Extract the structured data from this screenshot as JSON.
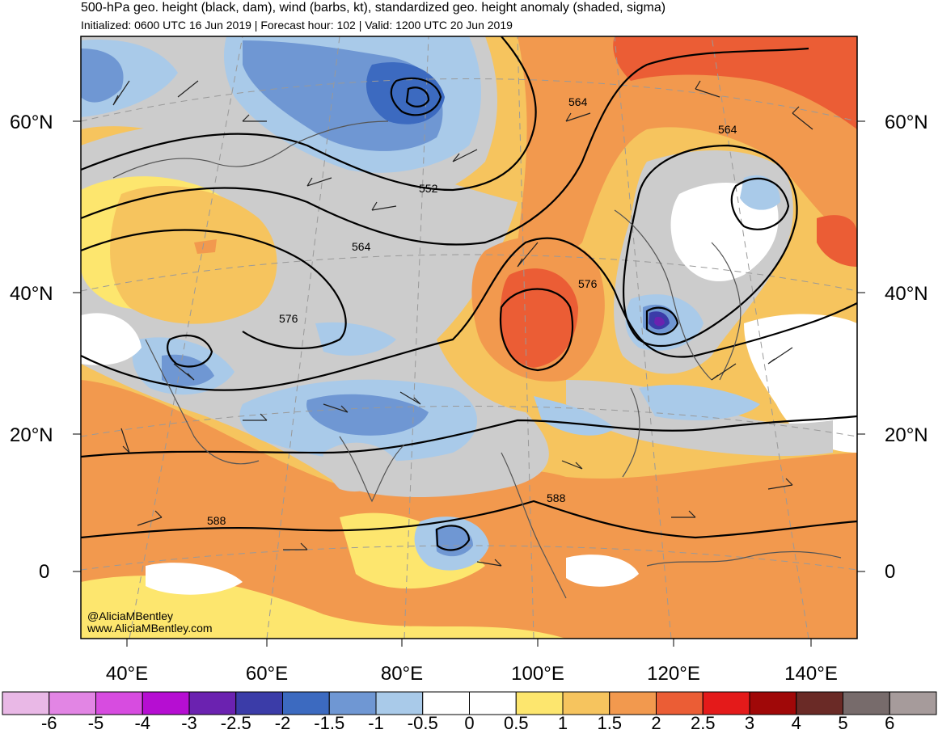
{
  "header": {
    "title": "500-hPa geo. height (black, dam), wind (barbs, kt), standardized geo. height anomaly (shaded, sigma)",
    "subtitle": "Initialized: 0600 UTC 16 Jun 2019 | Forecast hour: 102 | Valid: 1200 UTC 20 Jun 2019"
  },
  "map": {
    "lat_labels": [
      "60°N",
      "40°N",
      "20°N",
      "0"
    ],
    "lon_labels": [
      "40°E",
      "60°E",
      "80°E",
      "100°E",
      "120°E",
      "140°E"
    ],
    "contour_labels": [
      "552",
      "564",
      "564",
      "564",
      "576",
      "576",
      "588",
      "588"
    ],
    "credit_handle": "@AliciaMBentley",
    "credit_url": "www.AliciaMBentley.com"
  },
  "colorbar": {
    "labels": [
      "-6",
      "-5",
      "-4",
      "-3",
      "-2.5",
      "-2",
      "-1.5",
      "-1",
      "-0.5",
      "0",
      "0.5",
      "1",
      "1.5",
      "2",
      "2.5",
      "3",
      "4",
      "5",
      "6"
    ],
    "colors": [
      "#e9b8e6",
      "#e285e4",
      "#d74ce0",
      "#b60ed2",
      "#6b22b0",
      "#3b3ca8",
      "#3c6ac0",
      "#6f97d3",
      "#a9cae9",
      "#ffffff",
      "#ffffff",
      "#fde66e",
      "#f6c45e",
      "#f2994e",
      "#eb5d35",
      "#e41a1a",
      "#a00808",
      "#6a2a26",
      "#776b6b",
      "#a69b9b"
    ]
  }
}
